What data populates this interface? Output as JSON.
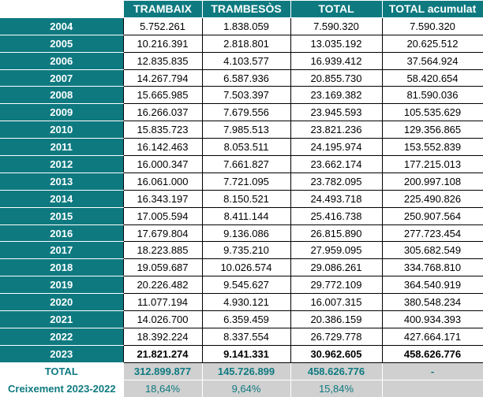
{
  "header": {
    "trambaix": "TRAMBAIX",
    "trambesos": "TRAMBESÒS",
    "total": "TOTAL",
    "acumulat": "TOTAL acumulat"
  },
  "rows": [
    {
      "year": "2004",
      "trambaix": "5.752.261",
      "trambesos": "1.838.059",
      "total": "7.590.320",
      "acumulat": "7.590.320"
    },
    {
      "year": "2005",
      "trambaix": "10.216.391",
      "trambesos": "2.818.801",
      "total": "13.035.192",
      "acumulat": "20.625.512"
    },
    {
      "year": "2006",
      "trambaix": "12.835.835",
      "trambesos": "4.103.577",
      "total": "16.939.412",
      "acumulat": "37.564.924"
    },
    {
      "year": "2007",
      "trambaix": "14.267.794",
      "trambesos": "6.587.936",
      "total": "20.855.730",
      "acumulat": "58.420.654"
    },
    {
      "year": "2008",
      "trambaix": "15.665.985",
      "trambesos": "7.503.397",
      "total": "23.169.382",
      "acumulat": "81.590.036"
    },
    {
      "year": "2009",
      "trambaix": "16.266.037",
      "trambesos": "7.679.556",
      "total": "23.945.593",
      "acumulat": "105.535.629"
    },
    {
      "year": "2010",
      "trambaix": "15.835.723",
      "trambesos": "7.985.513",
      "total": "23.821.236",
      "acumulat": "129.356.865"
    },
    {
      "year": "2011",
      "trambaix": "16.142.463",
      "trambesos": "8.053.511",
      "total": "24.195.974",
      "acumulat": "153.552.839"
    },
    {
      "year": "2012",
      "trambaix": "16.000.347",
      "trambesos": "7.661.827",
      "total": "23.662.174",
      "acumulat": "177.215.013"
    },
    {
      "year": "2013",
      "trambaix": "16.061.000",
      "trambesos": "7.721.095",
      "total": "23.782.095",
      "acumulat": "200.997.108"
    },
    {
      "year": "2014",
      "trambaix": "16.343.197",
      "trambesos": "8.150.521",
      "total": "24.493.718",
      "acumulat": "225.490.826"
    },
    {
      "year": "2015",
      "trambaix": "17.005.594",
      "trambesos": "8.411.144",
      "total": "25.416.738",
      "acumulat": "250.907.564"
    },
    {
      "year": "2016",
      "trambaix": "17.679.804",
      "trambesos": "9.136.086",
      "total": "26.815.890",
      "acumulat": "277.723.454"
    },
    {
      "year": "2017",
      "trambaix": "18.223.885",
      "trambesos": "9.735.210",
      "total": "27.959.095",
      "acumulat": "305.682.549"
    },
    {
      "year": "2018",
      "trambaix": "19.059.687",
      "trambesos": "10.026.574",
      "total": "29.086.261",
      "acumulat": "334.768.810"
    },
    {
      "year": "2019",
      "trambaix": "20.226.482",
      "trambesos": "9.545.627",
      "total": "29.772.109",
      "acumulat": "364.540.919"
    },
    {
      "year": "2020",
      "trambaix": "11.077.194",
      "trambesos": "4.930.121",
      "total": "16.007.315",
      "acumulat": "380.548.234"
    },
    {
      "year": "2021",
      "trambaix": "14.026.700",
      "trambesos": "6.359.459",
      "total": "20.386.159",
      "acumulat": "400.934.393"
    },
    {
      "year": "2022",
      "trambaix": "18.392.224",
      "trambesos": "8.337.554",
      "total": "26.729.778",
      "acumulat": "427.664.171"
    },
    {
      "year": "2023",
      "trambaix": "21.821.274",
      "trambesos": "9.141.331",
      "total": "30.962.605",
      "acumulat": "458.626.776"
    }
  ],
  "totals": {
    "label": "TOTAL",
    "trambaix": "312.899.877",
    "trambesos": "145.726.899",
    "total": "458.626.776",
    "acumulat": "-"
  },
  "growth": {
    "label": "Creixement 2023-2022",
    "trambaix": "18,64%",
    "trambesos": "9,64%",
    "total": "15,84%",
    "acumulat": ""
  },
  "colors": {
    "header_bg": "#0e7a80",
    "footer_bg": "#d0d0d0",
    "footer_text": "#0e7a80"
  }
}
